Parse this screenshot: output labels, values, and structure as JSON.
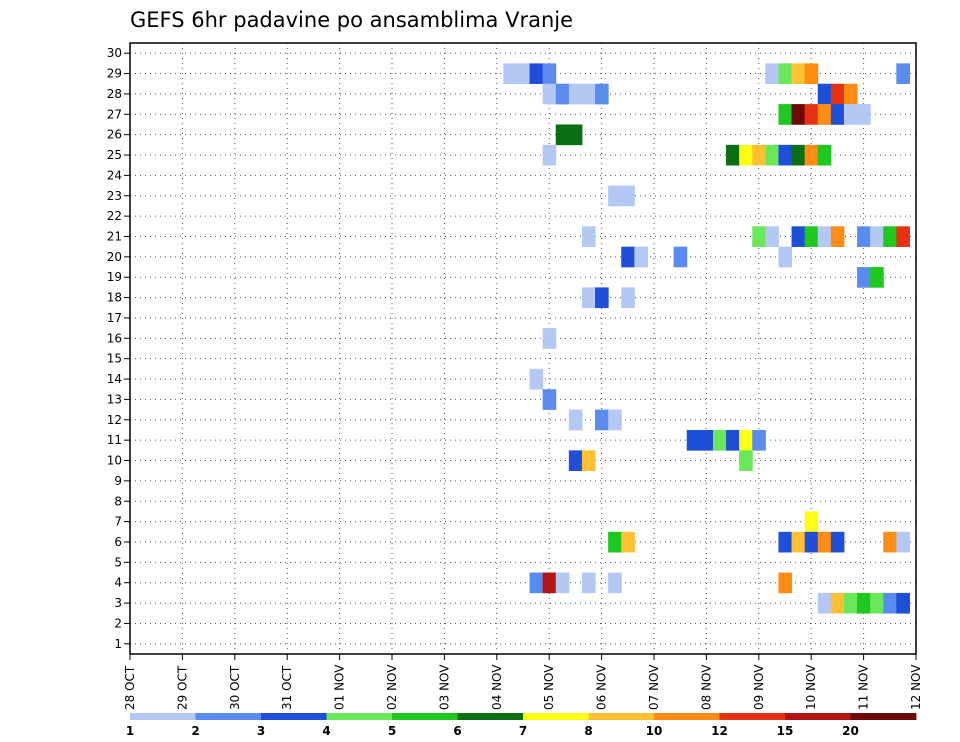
{
  "chart_data": {
    "type": "heatmap",
    "title": "GEFS 6hr padavine po ansamblima Vranje",
    "xlabel": "",
    "ylabel": "",
    "x_ticks": [
      "28 OCT",
      "29 OCT",
      "30 OCT",
      "31 OCT",
      "01 NOV",
      "02 NOV",
      "03 NOV",
      "04 NOV",
      "05 NOV",
      "06 NOV",
      "07 NOV",
      "08 NOV",
      "09 NOV",
      "10 NOV",
      "11 NOV",
      "12 NOV"
    ],
    "y_ticks": [
      1,
      2,
      3,
      4,
      5,
      6,
      7,
      8,
      9,
      10,
      11,
      12,
      13,
      14,
      15,
      16,
      17,
      18,
      19,
      20,
      21,
      22,
      23,
      24,
      25,
      26,
      27,
      28,
      29,
      30
    ],
    "x_range": [
      0,
      60
    ],
    "y_range": [
      0.5,
      30.5
    ],
    "x_step": "6hr",
    "grid": true,
    "colorbar": {
      "labels": [
        "1",
        "2",
        "3",
        "4",
        "5",
        "6",
        "7",
        "8",
        "10",
        "12",
        "15",
        "20"
      ],
      "colors": [
        "#b4c8f4",
        "#5a8cf0",
        "#1f4fd6",
        "#6be85a",
        "#1ec81e",
        "#0a6e14",
        "#ffff14",
        "#ffc032",
        "#ff8c14",
        "#e63214",
        "#b41414",
        "#6e0a0a"
      ]
    },
    "cells": [
      {
        "m": 29,
        "t": 29,
        "c": 0
      },
      {
        "m": 29,
        "t": 30,
        "c": 0
      },
      {
        "m": 29,
        "t": 31,
        "c": 2
      },
      {
        "m": 29,
        "t": 32,
        "c": 1
      },
      {
        "m": 29,
        "t": 49,
        "c": 0
      },
      {
        "m": 29,
        "t": 50,
        "c": 3
      },
      {
        "m": 29,
        "t": 51,
        "c": 7
      },
      {
        "m": 29,
        "t": 52,
        "c": 8
      },
      {
        "m": 29,
        "t": 59,
        "c": 1
      },
      {
        "m": 28,
        "t": 32,
        "c": 0
      },
      {
        "m": 28,
        "t": 33,
        "c": 1
      },
      {
        "m": 28,
        "t": 34,
        "c": 0
      },
      {
        "m": 28,
        "t": 35,
        "c": 0
      },
      {
        "m": 28,
        "t": 36,
        "c": 1
      },
      {
        "m": 28,
        "t": 53,
        "c": 2
      },
      {
        "m": 28,
        "t": 54,
        "c": 9
      },
      {
        "m": 28,
        "t": 55,
        "c": 8
      },
      {
        "m": 27,
        "t": 50,
        "c": 4
      },
      {
        "m": 27,
        "t": 51,
        "c": 11
      },
      {
        "m": 27,
        "t": 52,
        "c": 9
      },
      {
        "m": 27,
        "t": 53,
        "c": 8
      },
      {
        "m": 27,
        "t": 54,
        "c": 2
      },
      {
        "m": 27,
        "t": 55,
        "c": 0
      },
      {
        "m": 27,
        "t": 56,
        "c": 0
      },
      {
        "m": 26,
        "t": 33,
        "c": 5
      },
      {
        "m": 26,
        "t": 34,
        "c": 5
      },
      {
        "m": 25,
        "t": 32,
        "c": 0
      },
      {
        "m": 25,
        "t": 46,
        "c": 5
      },
      {
        "m": 25,
        "t": 47,
        "c": 6
      },
      {
        "m": 25,
        "t": 48,
        "c": 7
      },
      {
        "m": 25,
        "t": 49,
        "c": 3
      },
      {
        "m": 25,
        "t": 50,
        "c": 2
      },
      {
        "m": 25,
        "t": 51,
        "c": 5
      },
      {
        "m": 25,
        "t": 52,
        "c": 8
      },
      {
        "m": 25,
        "t": 53,
        "c": 4
      },
      {
        "m": 23,
        "t": 37,
        "c": 0
      },
      {
        "m": 23,
        "t": 38,
        "c": 0
      },
      {
        "m": 21,
        "t": 35,
        "c": 0
      },
      {
        "m": 21,
        "t": 48,
        "c": 3
      },
      {
        "m": 21,
        "t": 49,
        "c": 0
      },
      {
        "m": 21,
        "t": 51,
        "c": 2
      },
      {
        "m": 21,
        "t": 52,
        "c": 4
      },
      {
        "m": 21,
        "t": 53,
        "c": 0
      },
      {
        "m": 21,
        "t": 54,
        "c": 8
      },
      {
        "m": 21,
        "t": 56,
        "c": 1
      },
      {
        "m": 21,
        "t": 57,
        "c": 0
      },
      {
        "m": 21,
        "t": 58,
        "c": 4
      },
      {
        "m": 21,
        "t": 59,
        "c": 9
      },
      {
        "m": 20,
        "t": 38,
        "c": 2
      },
      {
        "m": 20,
        "t": 39,
        "c": 0
      },
      {
        "m": 20,
        "t": 42,
        "c": 1
      },
      {
        "m": 20,
        "t": 50,
        "c": 0
      },
      {
        "m": 19,
        "t": 56,
        "c": 1
      },
      {
        "m": 19,
        "t": 57,
        "c": 4
      },
      {
        "m": 18,
        "t": 35,
        "c": 0
      },
      {
        "m": 18,
        "t": 36,
        "c": 2
      },
      {
        "m": 18,
        "t": 38,
        "c": 0
      },
      {
        "m": 16,
        "t": 32,
        "c": 0
      },
      {
        "m": 14,
        "t": 31,
        "c": 0
      },
      {
        "m": 13,
        "t": 32,
        "c": 1
      },
      {
        "m": 12,
        "t": 34,
        "c": 0
      },
      {
        "m": 12,
        "t": 36,
        "c": 1
      },
      {
        "m": 12,
        "t": 37,
        "c": 0
      },
      {
        "m": 11,
        "t": 43,
        "c": 2
      },
      {
        "m": 11,
        "t": 44,
        "c": 2
      },
      {
        "m": 11,
        "t": 45,
        "c": 3
      },
      {
        "m": 11,
        "t": 46,
        "c": 2
      },
      {
        "m": 11,
        "t": 47,
        "c": 6
      },
      {
        "m": 11,
        "t": 48,
        "c": 1
      },
      {
        "m": 10,
        "t": 34,
        "c": 2
      },
      {
        "m": 10,
        "t": 35,
        "c": 7
      },
      {
        "m": 10,
        "t": 47,
        "c": 3
      },
      {
        "m": 7,
        "t": 52,
        "c": 6
      },
      {
        "m": 6,
        "t": 37,
        "c": 4
      },
      {
        "m": 6,
        "t": 38,
        "c": 7
      },
      {
        "m": 6,
        "t": 50,
        "c": 2
      },
      {
        "m": 6,
        "t": 51,
        "c": 7
      },
      {
        "m": 6,
        "t": 52,
        "c": 2
      },
      {
        "m": 6,
        "t": 53,
        "c": 8
      },
      {
        "m": 6,
        "t": 54,
        "c": 2
      },
      {
        "m": 6,
        "t": 58,
        "c": 8
      },
      {
        "m": 6,
        "t": 59,
        "c": 0
      },
      {
        "m": 4,
        "t": 31,
        "c": 1
      },
      {
        "m": 4,
        "t": 32,
        "c": 10
      },
      {
        "m": 4,
        "t": 33,
        "c": 0
      },
      {
        "m": 4,
        "t": 35,
        "c": 0
      },
      {
        "m": 4,
        "t": 37,
        "c": 0
      },
      {
        "m": 4,
        "t": 50,
        "c": 8
      },
      {
        "m": 3,
        "t": 53,
        "c": 0
      },
      {
        "m": 3,
        "t": 54,
        "c": 7
      },
      {
        "m": 3,
        "t": 55,
        "c": 3
      },
      {
        "m": 3,
        "t": 56,
        "c": 4
      },
      {
        "m": 3,
        "t": 57,
        "c": 3
      },
      {
        "m": 3,
        "t": 58,
        "c": 1
      },
      {
        "m": 3,
        "t": 59,
        "c": 2
      }
    ]
  }
}
